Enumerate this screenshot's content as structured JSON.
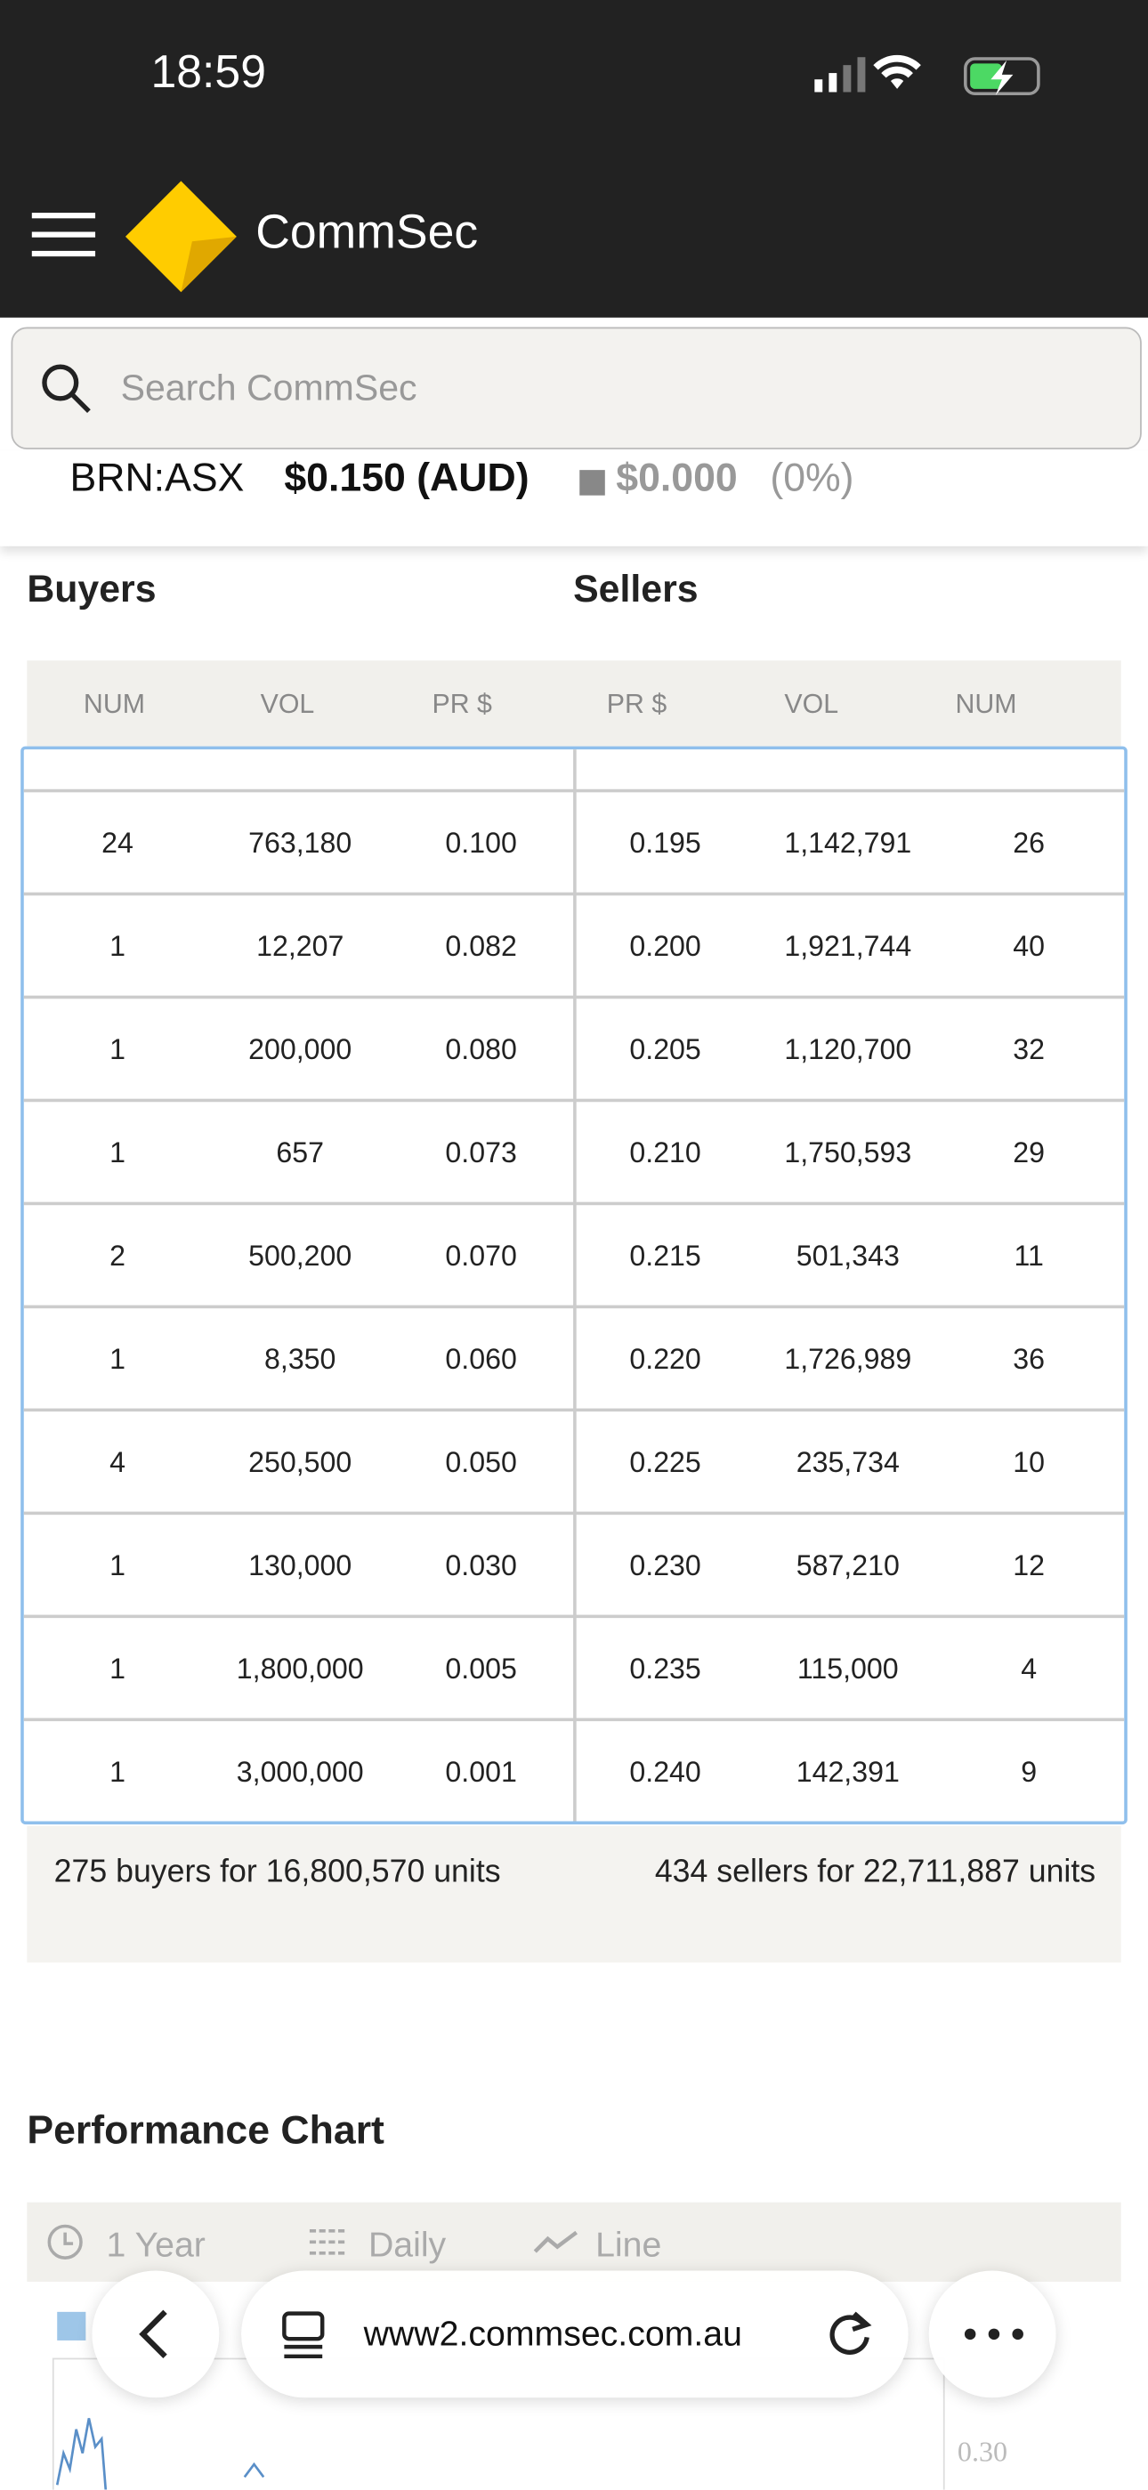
{
  "status_bar": {
    "time": "18:59"
  },
  "header": {
    "brand": "CommSec"
  },
  "search": {
    "placeholder": "Search CommSec"
  },
  "quote": {
    "code": "BRN:ASX",
    "price": "$0.150 (AUD)",
    "change": "$0.000",
    "change_pct": "(0%)"
  },
  "depth": {
    "buyers_title": "Buyers",
    "sellers_title": "Sellers",
    "columns": [
      "NUM",
      "VOL",
      "PR $",
      "PR $",
      "VOL",
      "NUM"
    ],
    "rows": [
      [
        "24",
        "763,180",
        "0.100",
        "0.195",
        "1,142,791",
        "26"
      ],
      [
        "1",
        "12,207",
        "0.082",
        "0.200",
        "1,921,744",
        "40"
      ],
      [
        "1",
        "200,000",
        "0.080",
        "0.205",
        "1,120,700",
        "32"
      ],
      [
        "1",
        "657",
        "0.073",
        "0.210",
        "1,750,593",
        "29"
      ],
      [
        "2",
        "500,200",
        "0.070",
        "0.215",
        "501,343",
        "11"
      ],
      [
        "1",
        "8,350",
        "0.060",
        "0.220",
        "1,726,989",
        "36"
      ],
      [
        "4",
        "250,500",
        "0.050",
        "0.225",
        "235,734",
        "10"
      ],
      [
        "1",
        "130,000",
        "0.030",
        "0.230",
        "587,210",
        "12"
      ],
      [
        "1",
        "1,800,000",
        "0.005",
        "0.235",
        "115,000",
        "4"
      ],
      [
        "1",
        "3,000,000",
        "0.001",
        "0.240",
        "142,391",
        "9"
      ]
    ],
    "buyers_summary": "275 buyers for 16,800,570 units",
    "sellers_summary": "434 sellers for 22,711,887 units"
  },
  "performance": {
    "title": "Performance Chart",
    "period": "1 Year",
    "interval": "Daily",
    "style": "Line",
    "axis_label": "0.30"
  },
  "browser": {
    "url": "www2.commsec.com.au"
  }
}
